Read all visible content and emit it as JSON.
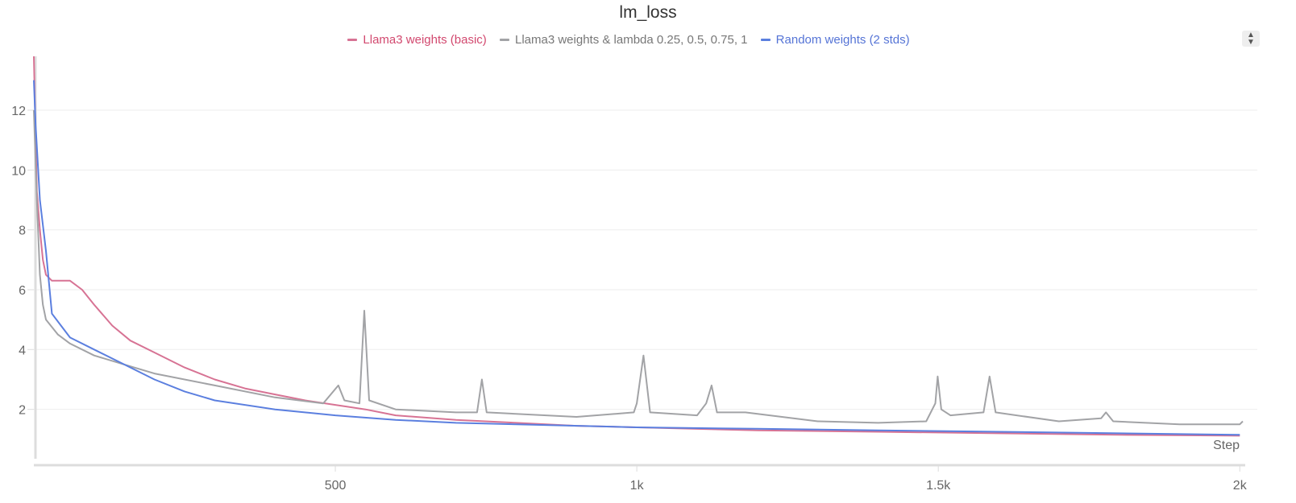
{
  "chart_data": {
    "type": "line",
    "title": "lm_loss",
    "xlabel": "Step",
    "ylabel": "",
    "xlim": [
      0,
      2005
    ],
    "ylim": [
      0.35,
      13.8
    ],
    "xticks": [
      500,
      1000,
      1500,
      2000
    ],
    "xtick_labels": [
      "500",
      "1k",
      "1.5k",
      "2k"
    ],
    "yticks": [
      2,
      4,
      6,
      8,
      10,
      12
    ],
    "ytick_labels": [
      "2",
      "4",
      "6",
      "8",
      "10",
      "12"
    ],
    "grid": true,
    "legend_position": "top-center",
    "series": [
      {
        "name": "Llama3 weights (basic)",
        "color": "#d77394",
        "text_color": "#d2496f",
        "x": [
          0,
          5,
          10,
          15,
          20,
          30,
          60,
          80,
          100,
          130,
          160,
          200,
          250,
          300,
          350,
          400,
          450,
          500,
          550,
          600,
          700,
          800,
          900,
          1000,
          1200,
          1400,
          1600,
          1800,
          2000
        ],
        "y": [
          13.8,
          9.3,
          8.0,
          7.0,
          6.5,
          6.3,
          6.3,
          6.0,
          5.5,
          4.8,
          4.3,
          3.9,
          3.4,
          3.0,
          2.7,
          2.5,
          2.3,
          2.15,
          2.0,
          1.8,
          1.65,
          1.55,
          1.45,
          1.4,
          1.3,
          1.25,
          1.2,
          1.15,
          1.12
        ]
      },
      {
        "name": "Llama3 weights & lambda 0.25, 0.5, 0.75, 1",
        "color": "#a2a3a6",
        "text_color": "#777777",
        "x": [
          0,
          5,
          10,
          15,
          20,
          40,
          60,
          100,
          150,
          200,
          300,
          400,
          480,
          505,
          515,
          540,
          548,
          556,
          600,
          700,
          735,
          743,
          751,
          900,
          995,
          1000,
          1011,
          1022,
          1100,
          1115,
          1124,
          1133,
          1180,
          1300,
          1400,
          1480,
          1495,
          1499,
          1505,
          1520,
          1575,
          1585,
          1595,
          1700,
          1770,
          1778,
          1790,
          1900,
          2000,
          2005
        ],
        "y": [
          12.0,
          9.0,
          6.5,
          5.5,
          5.0,
          4.5,
          4.2,
          3.8,
          3.5,
          3.2,
          2.8,
          2.4,
          2.2,
          2.8,
          2.3,
          2.2,
          5.3,
          2.3,
          2.0,
          1.9,
          1.9,
          3.0,
          1.9,
          1.75,
          1.9,
          2.2,
          3.8,
          1.9,
          1.8,
          2.2,
          2.8,
          1.9,
          1.9,
          1.6,
          1.55,
          1.6,
          2.2,
          3.1,
          2.0,
          1.8,
          1.9,
          3.1,
          1.9,
          1.6,
          1.7,
          1.9,
          1.6,
          1.5,
          1.5,
          1.6
        ]
      },
      {
        "name": "Random weights (2 stds)",
        "color": "#5b7fdf",
        "text_color": "#5574d6",
        "x": [
          0,
          3,
          10,
          20,
          30,
          45,
          60,
          100,
          150,
          200,
          250,
          300,
          400,
          500,
          600,
          700,
          800,
          1000,
          1200,
          1400,
          1600,
          1800,
          2000
        ],
        "y": [
          13.0,
          11.5,
          9.0,
          7.3,
          5.2,
          4.8,
          4.4,
          4.0,
          3.5,
          3.0,
          2.6,
          2.3,
          2.0,
          1.8,
          1.65,
          1.55,
          1.5,
          1.4,
          1.35,
          1.3,
          1.25,
          1.2,
          1.15
        ]
      }
    ]
  },
  "controls": {
    "sort_icon": "sort-up-down-icon"
  }
}
